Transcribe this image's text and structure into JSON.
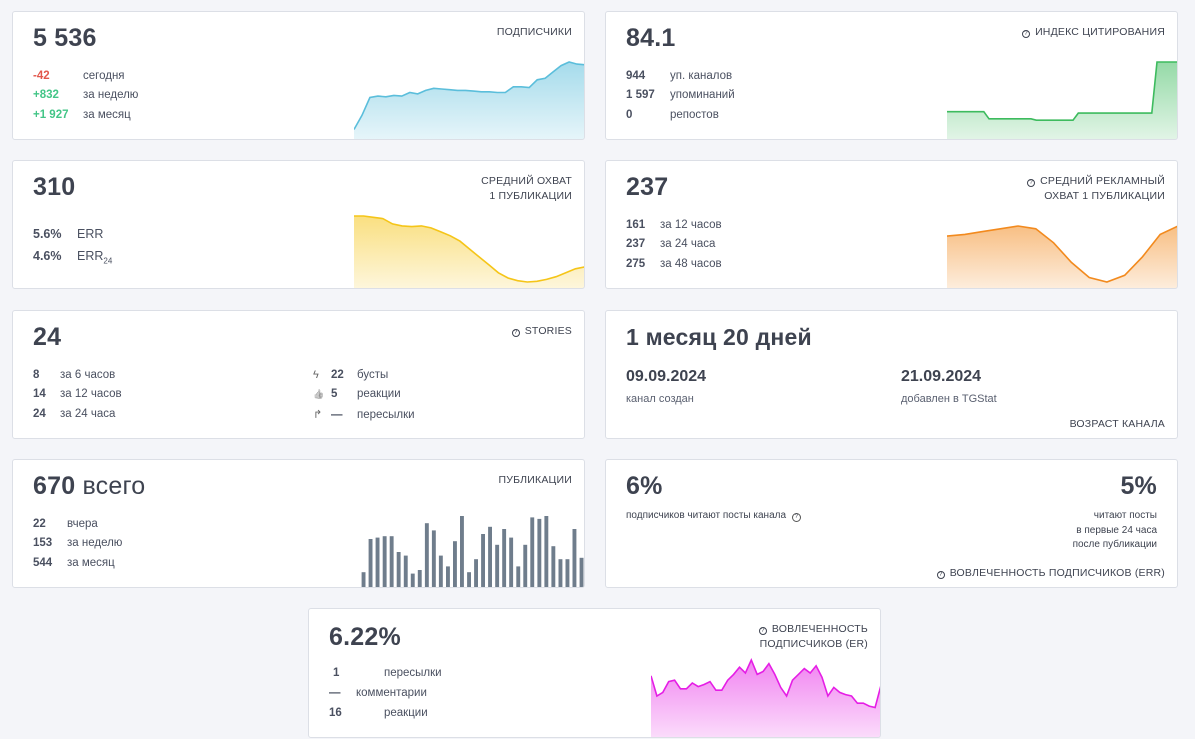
{
  "subscribers": {
    "value": "5 536",
    "label": "ПОДПИСЧИКИ",
    "rows": [
      {
        "v": "-42",
        "t": "сегодня"
      },
      {
        "v": "+832",
        "t": "за неделю"
      },
      {
        "v": "+1 927",
        "t": "за месяц"
      }
    ],
    "chart_data": {
      "type": "area",
      "color": "#5bbedb",
      "values": [
        0.05,
        0.25,
        0.5,
        0.52,
        0.51,
        0.53,
        0.52,
        0.57,
        0.55,
        0.6,
        0.63,
        0.62,
        0.61,
        0.6,
        0.6,
        0.59,
        0.58,
        0.58,
        0.57,
        0.57,
        0.65,
        0.65,
        0.64,
        0.75,
        0.77,
        0.86,
        0.95,
        1.0,
        0.97,
        0.96
      ]
    }
  },
  "citation": {
    "value": "84.1",
    "label": "ИНДЕКС ЦИТИРОВАНИЯ",
    "rows": [
      {
        "v": "944",
        "t": "уп. каналов"
      },
      {
        "v": "1 597",
        "t": "упоминаний"
      },
      {
        "v": "0",
        "t": "репостов"
      }
    ],
    "chart_data": {
      "type": "area",
      "color": "#3dbb5e",
      "values": [
        0.3,
        0.3,
        0.3,
        0.3,
        0.3,
        0.3,
        0.3,
        0.3,
        0.2,
        0.2,
        0.2,
        0.2,
        0.2,
        0.2,
        0.2,
        0.2,
        0.2,
        0.18,
        0.18,
        0.18,
        0.18,
        0.18,
        0.18,
        0.18,
        0.18,
        0.28,
        0.28,
        0.28,
        0.28,
        0.28,
        0.28,
        0.28,
        0.28,
        0.28,
        0.28,
        0.28,
        0.28,
        0.28,
        0.28,
        0.28,
        1.0,
        1.0,
        1.0,
        1.0,
        1.0
      ]
    }
  },
  "avg_reach": {
    "value": "310",
    "label_line1": "СРЕДНИЙ ОХВАТ",
    "label_line2": "1 ПУБЛИКАЦИИ",
    "rows": [
      {
        "v": "5.6%",
        "t": "ERR"
      },
      {
        "v": "4.6%",
        "t": "ERR",
        "sub": "24"
      }
    ],
    "chart_data": {
      "type": "area",
      "color": "#f5c518",
      "values": [
        1.0,
        1.0,
        0.98,
        0.96,
        0.88,
        0.85,
        0.84,
        0.85,
        0.82,
        0.76,
        0.7,
        0.62,
        0.5,
        0.38,
        0.26,
        0.14,
        0.06,
        0.02,
        0.0,
        0.01,
        0.04,
        0.08,
        0.14,
        0.2,
        0.23
      ]
    }
  },
  "ad_reach": {
    "value": "237",
    "label_line1": "СРЕДНИЙ РЕКЛАМНЫЙ",
    "label_line2": "ОХВАТ 1 ПУБЛИКАЦИИ",
    "rows": [
      {
        "v": "161",
        "t": "за 12 часов"
      },
      {
        "v": "237",
        "t": "за 24 часа"
      },
      {
        "v": "275",
        "t": "за 48 часов"
      }
    ],
    "chart_data": {
      "type": "area",
      "color": "#f28a1e",
      "values": [
        0.82,
        0.85,
        0.9,
        0.95,
        1.0,
        0.95,
        0.7,
        0.35,
        0.08,
        0.0,
        0.12,
        0.45,
        0.85,
        1.0
      ]
    }
  },
  "stories": {
    "value": "24",
    "label": "STORIES",
    "rows_left": [
      {
        "v": "8",
        "t": "за 6 часов"
      },
      {
        "v": "14",
        "t": "за 12 часов"
      },
      {
        "v": "24",
        "t": "за 24 часа"
      }
    ],
    "rows_right": [
      {
        "icon": "lightning-icon",
        "glyph": "ϟ",
        "v": "22",
        "t": "бусты"
      },
      {
        "icon": "thumbs-up-icon",
        "glyph": "👍",
        "v": "5",
        "t": "реакции"
      },
      {
        "icon": "forward-icon",
        "glyph": "↱",
        "v": "—",
        "t": "пересылки"
      }
    ]
  },
  "age": {
    "value": "1 месяц 20 дней",
    "created_date": "09.09.2024",
    "created_label": "канал создан",
    "added_date": "21.09.2024",
    "added_label": "добавлен в TGStat",
    "label": "ВОЗРАСТ КАНАЛА"
  },
  "posts": {
    "value": "670",
    "unit": "всего",
    "label": "ПУБЛИКАЦИИ",
    "rows": [
      {
        "v": "22",
        "t": "вчера"
      },
      {
        "v": "153",
        "t": "за неделю"
      },
      {
        "v": "544",
        "t": "за месяц"
      }
    ],
    "chart_data": {
      "type": "bar",
      "color": "#6f7d8c",
      "values": [
        0.22,
        0.68,
        0.7,
        0.72,
        0.72,
        0.5,
        0.45,
        0.2,
        0.25,
        0.9,
        0.8,
        0.45,
        0.3,
        0.65,
        1.0,
        0.22,
        0.4,
        0.75,
        0.85,
        0.6,
        0.82,
        0.7,
        0.3,
        0.6,
        0.98,
        0.96,
        1.0,
        0.58,
        0.4,
        0.4,
        0.82,
        0.42
      ]
    }
  },
  "err": {
    "value_left": "6%",
    "text_left": "подписчиков читают посты канала",
    "value_right": "5%",
    "text_right_1": "читают посты",
    "text_right_2": "в первые 24 часа",
    "text_right_3": "после публикации",
    "label": "ВОВЛЕЧЕННОСТЬ ПОДПИСЧИКОВ (ERR)"
  },
  "er": {
    "value": "6.22%",
    "label_line1": "ВОВЛЕЧЕННОСТЬ",
    "label_line2": "ПОДПИСЧИКОВ (ER)",
    "rows": [
      {
        "v": "1",
        "t": "пересылки"
      },
      {
        "v": "—",
        "t": "комментарии"
      },
      {
        "v": "16",
        "t": "реакции"
      }
    ],
    "chart_data": {
      "type": "area",
      "color": "#e51ee5",
      "values": [
        0.78,
        0.5,
        0.55,
        0.7,
        0.72,
        0.6,
        0.6,
        0.68,
        0.63,
        0.66,
        0.7,
        0.58,
        0.58,
        0.72,
        0.8,
        0.9,
        0.82,
        1.0,
        0.8,
        0.84,
        0.95,
        0.8,
        0.62,
        0.5,
        0.72,
        0.8,
        0.88,
        0.82,
        0.92,
        0.76,
        0.5,
        0.62,
        0.55,
        0.52,
        0.5,
        0.4,
        0.4,
        0.36,
        0.34,
        0.65
      ]
    }
  }
}
